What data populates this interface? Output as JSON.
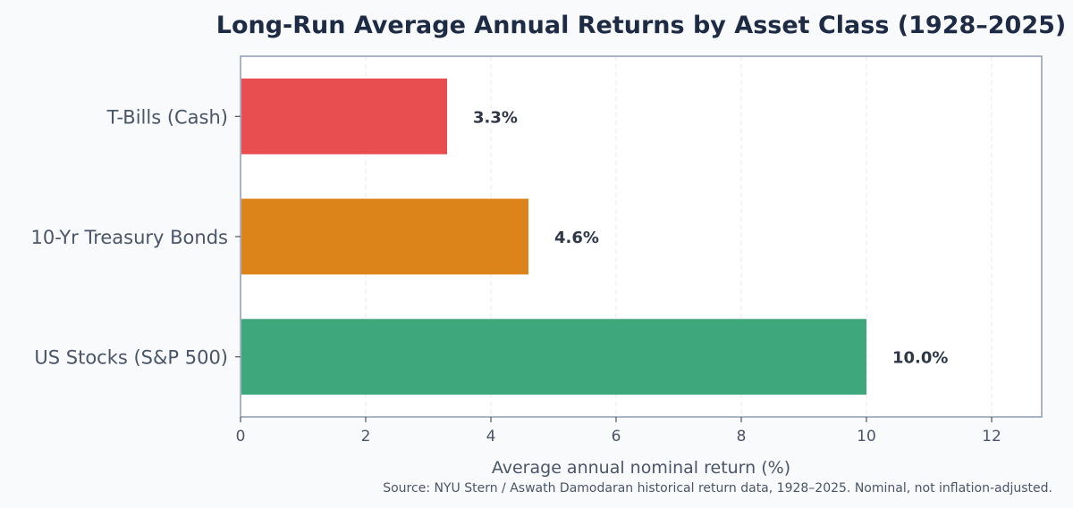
{
  "chart_data": {
    "type": "bar",
    "orientation": "horizontal",
    "title": "Long-Run Average Annual Returns by Asset Class (1928–2025)",
    "xlabel": "Average annual nominal return (%)",
    "ylabel": "",
    "categories": [
      "T-Bills (Cash)",
      "10-Yr Treasury Bonds",
      "US Stocks (S&P 500)"
    ],
    "values": [
      3.3,
      4.6,
      10.0
    ],
    "value_labels": [
      "3.3%",
      "4.6%",
      "10.0%"
    ],
    "colors": [
      "#e84d4f",
      "#dc8319",
      "#3ea77c"
    ],
    "xlim": [
      0,
      12.8
    ],
    "xticks": [
      0,
      2,
      4,
      6,
      8,
      10,
      12
    ],
    "xtick_labels": [
      "0",
      "2",
      "4",
      "6",
      "8",
      "10",
      "12"
    ],
    "grid": "x, dashed",
    "source_note": "Source: NYU Stern / Aswath Damodaran historical return data, 1928–2025. Nominal, not inflation-adjusted."
  }
}
